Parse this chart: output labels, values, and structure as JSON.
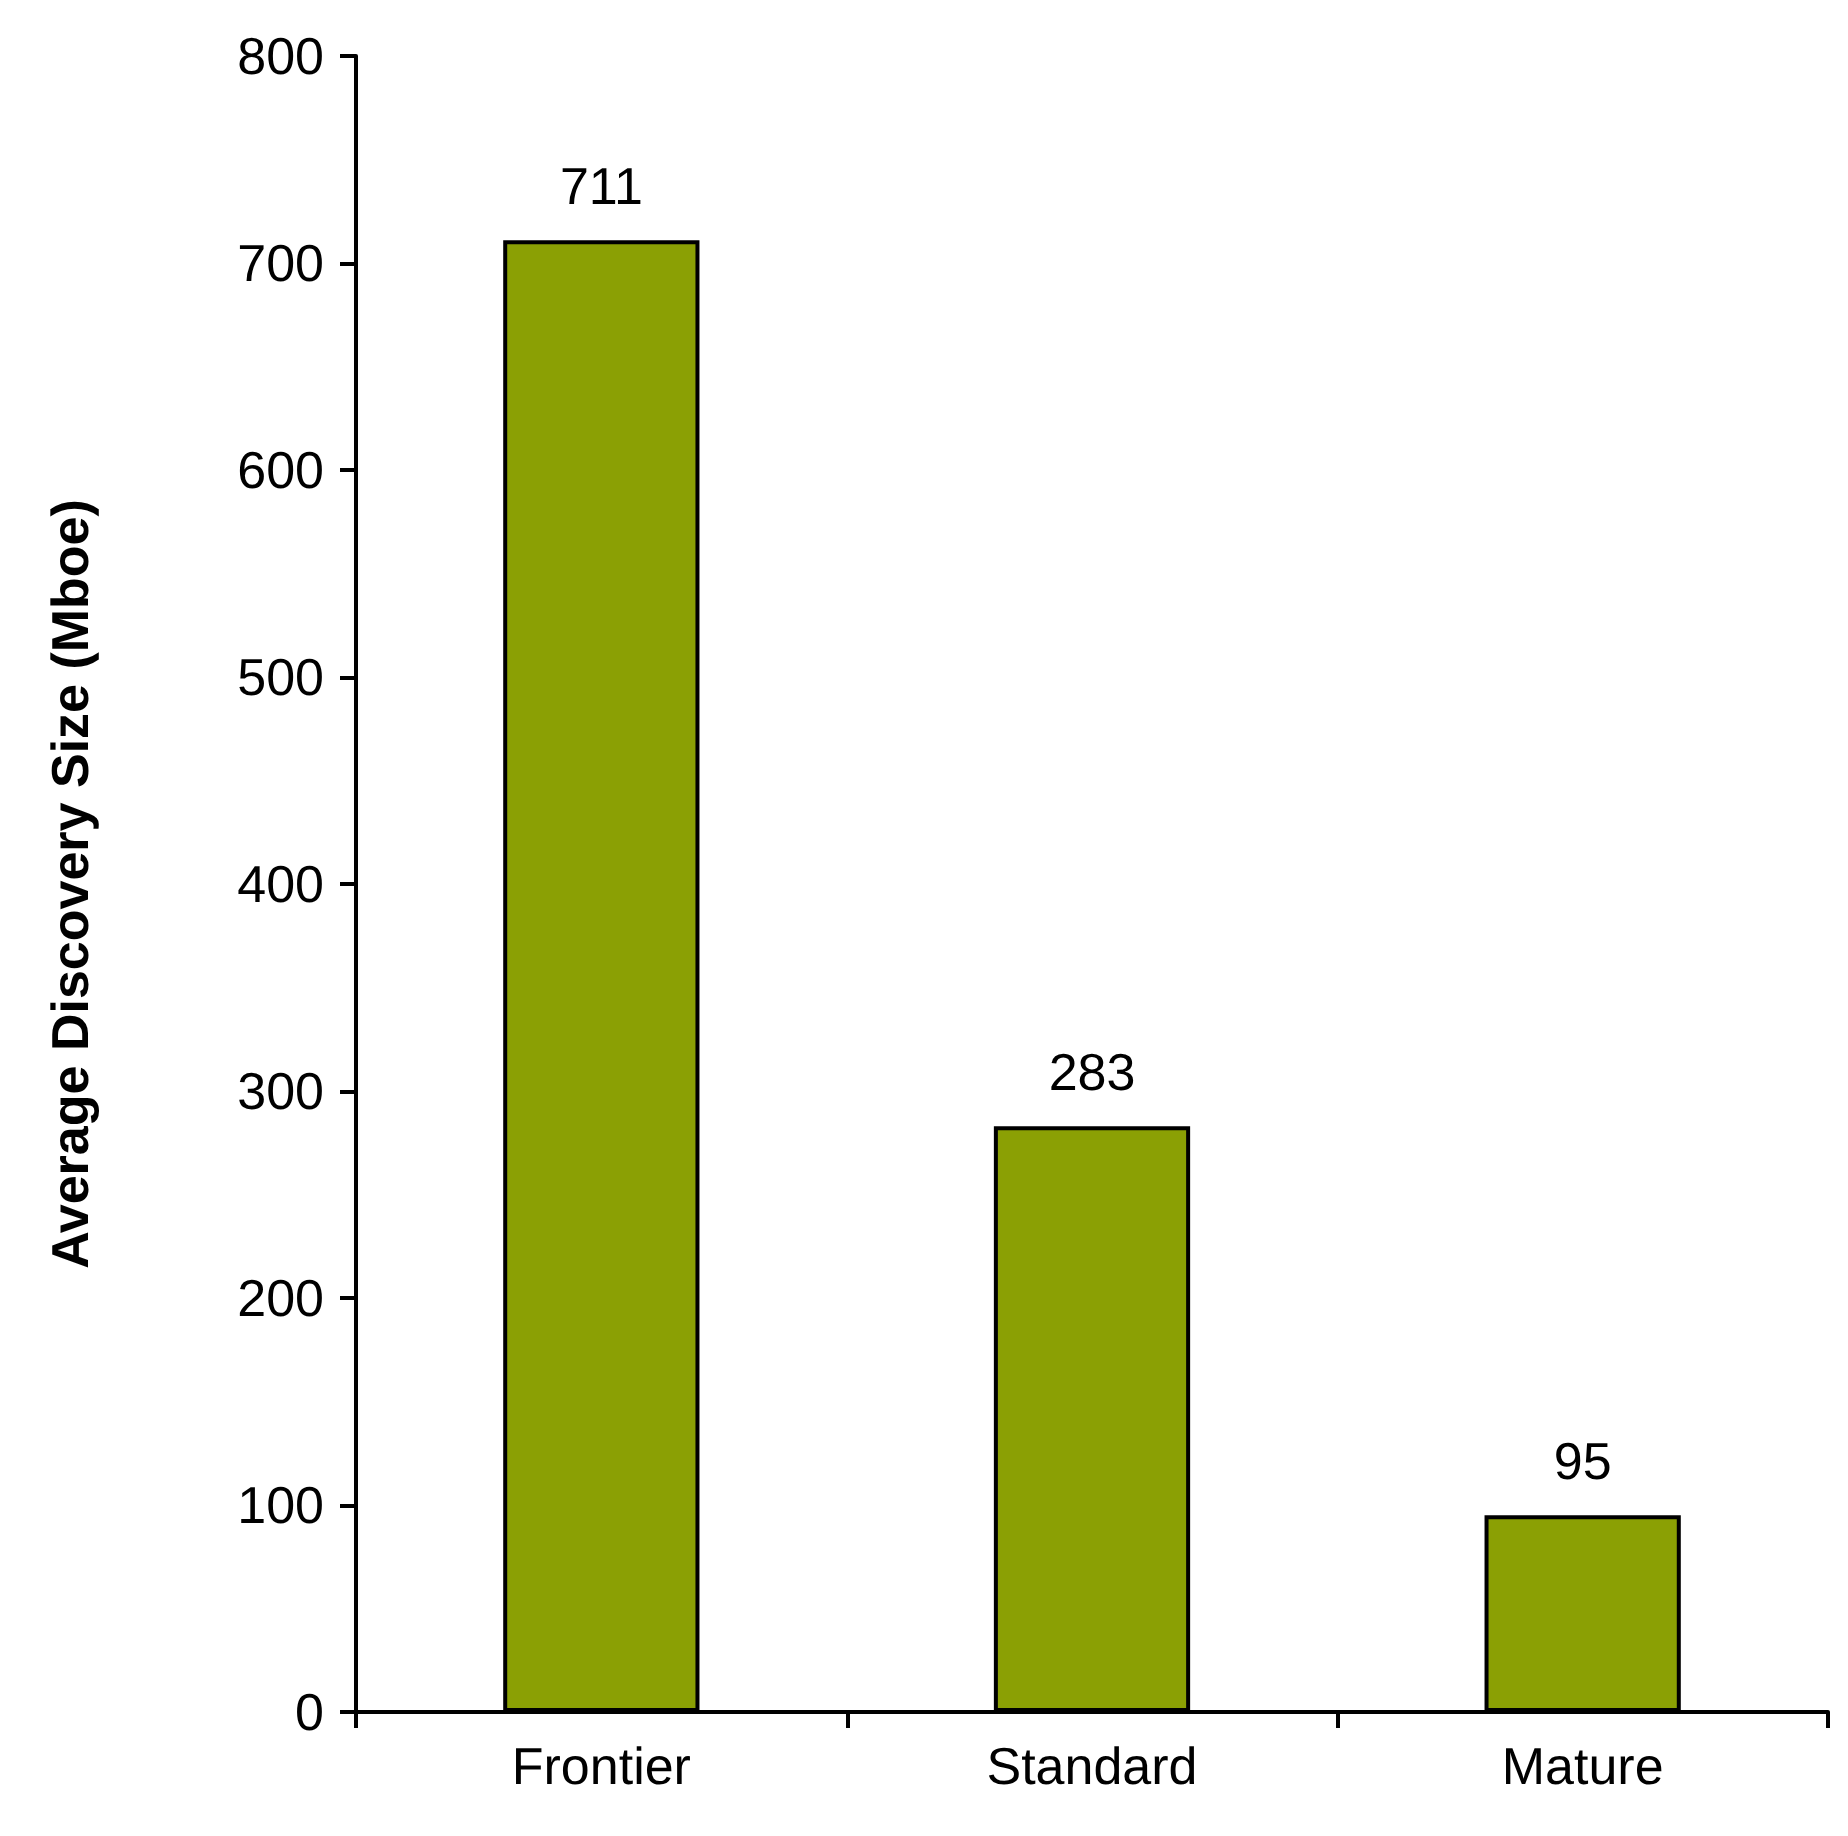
{
  "chart_data": {
    "type": "bar",
    "ylabel": "Average Discovery Size (Mboe)",
    "categories": [
      "Frontier",
      "Standard",
      "Mature"
    ],
    "values": [
      711,
      283,
      95
    ],
    "color": "#8ba004",
    "ylim": [
      0,
      800
    ],
    "yticks": [
      0,
      100,
      200,
      300,
      400,
      500,
      600,
      700,
      800
    ],
    "data_labels": true
  }
}
